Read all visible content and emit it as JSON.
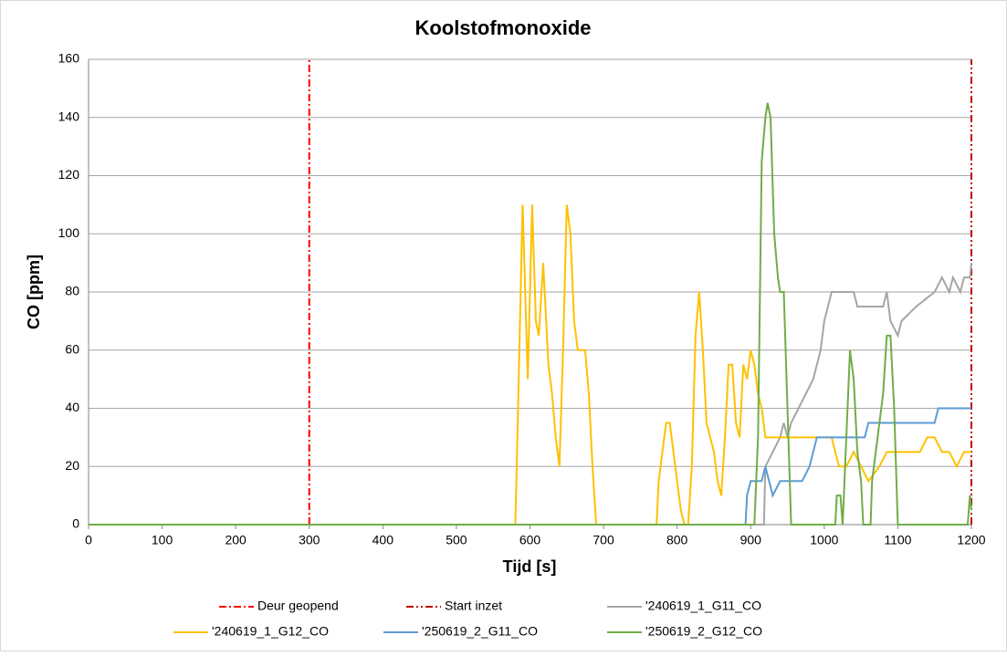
{
  "chart_data": {
    "type": "line",
    "title": "Koolstofmonoxide",
    "x_label": "Tijd [s]",
    "y_label": "CO [ppm]",
    "xlim": [
      0,
      1200
    ],
    "xticks": [
      0,
      100,
      200,
      300,
      400,
      500,
      600,
      700,
      800,
      900,
      1000,
      1100,
      1200
    ],
    "ylim": [
      0,
      160
    ],
    "yticks": [
      0,
      20,
      40,
      60,
      80,
      100,
      120,
      140,
      160
    ],
    "grid": true,
    "series": [
      {
        "name": "Deur geopend",
        "color": "#ff0000",
        "dash": "dash-dot",
        "x": [
          300,
          300
        ],
        "values": [
          0,
          160
        ]
      },
      {
        "name": "Start inzet",
        "color": "#c00000",
        "dash": "dash-dot-dot",
        "x": [
          1200,
          1200
        ],
        "values": [
          0,
          160
        ]
      },
      {
        "name": "'240619_1_G11_CO",
        "color": "#a5a5a5",
        "x": [
          0,
          918,
          920,
          930,
          940,
          945,
          950,
          955,
          965,
          975,
          985,
          990,
          995,
          1000,
          1005,
          1010,
          1040,
          1045,
          1080,
          1085,
          1090,
          1100,
          1105,
          1125,
          1150,
          1160,
          1170,
          1175,
          1185,
          1190,
          1198,
          1200
        ],
        "values": [
          0,
          0,
          20,
          25,
          30,
          35,
          30,
          35,
          40,
          45,
          50,
          55,
          60,
          70,
          75,
          80,
          80,
          75,
          75,
          80,
          70,
          65,
          70,
          75,
          80,
          85,
          80,
          85,
          80,
          85,
          85,
          90
        ]
      },
      {
        "name": "'240619_1_G12_CO",
        "color": "#ffc000",
        "x": [
          0,
          580,
          582,
          590,
          597,
          603,
          608,
          612,
          618,
          625,
          630,
          635,
          640,
          645,
          650,
          655,
          660,
          665,
          675,
          680,
          685,
          690,
          772,
          775,
          785,
          790,
          795,
          800,
          805,
          810,
          815,
          820,
          825,
          830,
          835,
          840,
          845,
          850,
          855,
          860,
          865,
          870,
          875,
          880,
          885,
          890,
          895,
          900,
          905,
          910,
          915,
          920,
          1010,
          1015,
          1020,
          1030,
          1040,
          1050,
          1060,
          1075,
          1085,
          1130,
          1140,
          1150,
          1160,
          1170,
          1180,
          1190,
          1200
        ],
        "values": [
          0,
          0,
          20,
          110,
          50,
          110,
          70,
          65,
          90,
          55,
          45,
          30,
          20,
          60,
          110,
          100,
          70,
          60,
          60,
          45,
          20,
          0,
          0,
          15,
          35,
          35,
          25,
          15,
          5,
          0,
          0,
          20,
          65,
          80,
          60,
          35,
          30,
          25,
          15,
          10,
          30,
          55,
          55,
          35,
          30,
          55,
          50,
          60,
          55,
          45,
          40,
          30,
          30,
          25,
          20,
          20,
          25,
          20,
          15,
          20,
          25,
          25,
          30,
          30,
          25,
          25,
          20,
          25,
          25
        ]
      },
      {
        "name": "'250619_2_G11_CO",
        "color": "#5b9bd5",
        "x": [
          0,
          893,
          895,
          900,
          915,
          920,
          925,
          930,
          940,
          970,
          980,
          985,
          990,
          1055,
          1060,
          1150,
          1155,
          1200
        ],
        "values": [
          0,
          0,
          10,
          15,
          15,
          20,
          15,
          10,
          15,
          15,
          20,
          25,
          30,
          30,
          35,
          35,
          40,
          40
        ]
      },
      {
        "name": "'250619_2_G12_CO",
        "color": "#70ad47",
        "x": [
          0,
          905,
          910,
          915,
          920,
          923,
          927,
          932,
          937,
          940,
          945,
          950,
          955,
          1015,
          1017,
          1022,
          1025,
          1030,
          1035,
          1040,
          1045,
          1050,
          1053,
          1063,
          1065,
          1070,
          1075,
          1080,
          1085,
          1090,
          1095,
          1100,
          1195,
          1198,
          1200
        ],
        "values": [
          0,
          0,
          30,
          125,
          140,
          145,
          140,
          100,
          85,
          80,
          80,
          40,
          0,
          0,
          10,
          10,
          0,
          30,
          60,
          50,
          25,
          15,
          0,
          0,
          15,
          25,
          35,
          45,
          65,
          65,
          40,
          0,
          0,
          10,
          5
        ]
      }
    ]
  }
}
